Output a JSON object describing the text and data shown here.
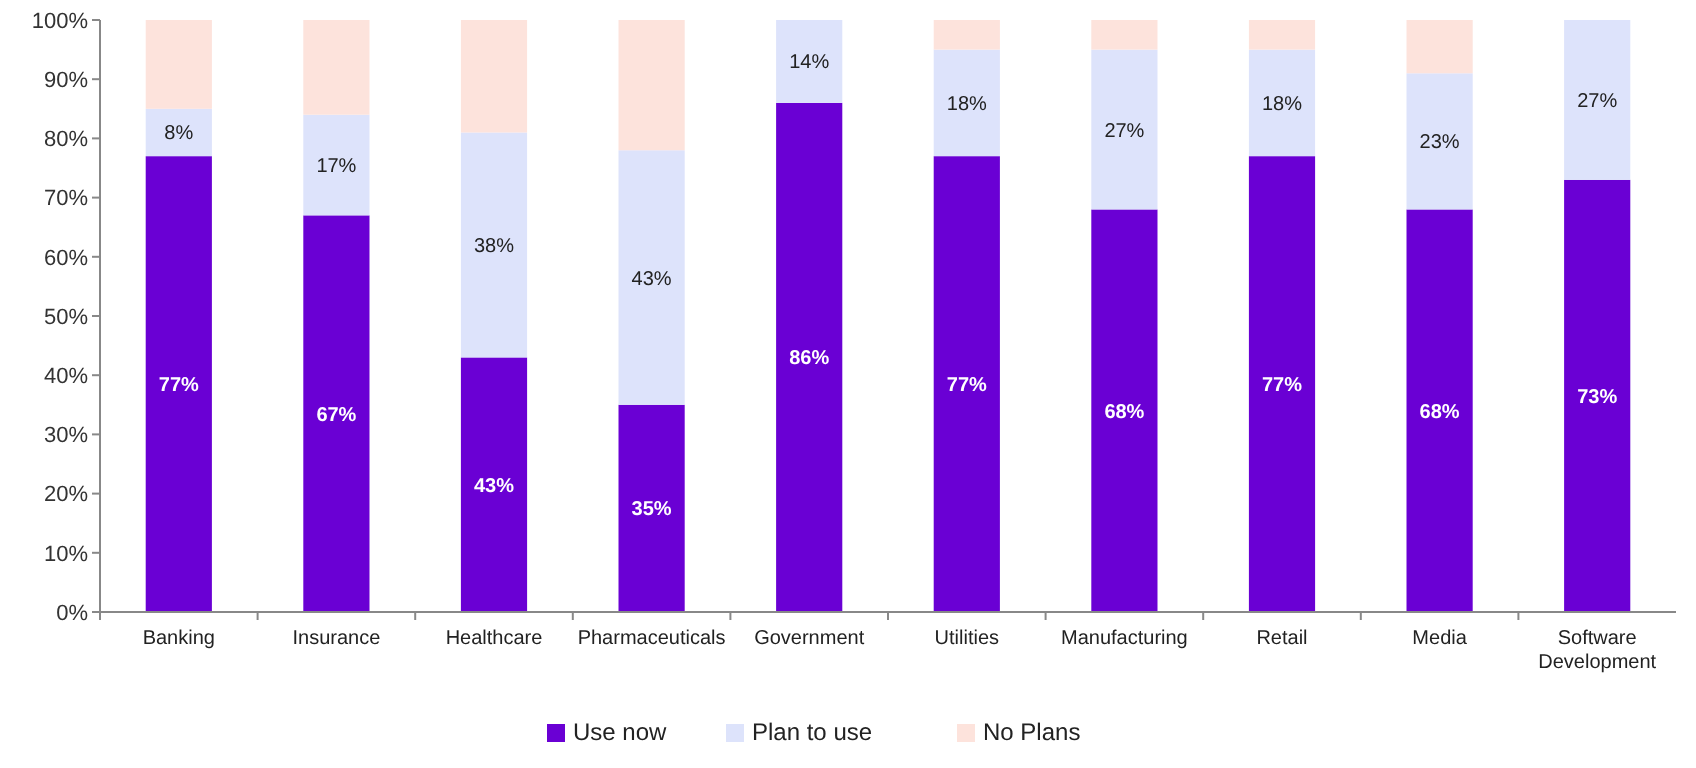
{
  "chart_data": {
    "type": "bar",
    "stacked": true,
    "categories": [
      "Banking",
      "Insurance",
      "Healthcare",
      "Pharmaceuticals",
      "Government",
      "Utilities",
      "Manufacturing",
      "Retail",
      "Media",
      "Software Development"
    ],
    "series": [
      {
        "name": "Use now",
        "color": "#6a00d4",
        "values": [
          77,
          67,
          43,
          35,
          86,
          77,
          68,
          77,
          68,
          73
        ],
        "value_labels": [
          "77%",
          "67%",
          "43%",
          "35%",
          "86%",
          "77%",
          "68%",
          "77%",
          "68%",
          "73%"
        ]
      },
      {
        "name": "Plan to use",
        "color": "#dde3fb",
        "values": [
          8,
          17,
          38,
          43,
          14,
          18,
          27,
          18,
          23,
          27
        ],
        "value_labels": [
          "8%",
          "17%",
          "38%",
          "43%",
          "14%",
          "18%",
          "27%",
          "18%",
          "23%",
          "27%"
        ]
      },
      {
        "name": "No Plans",
        "color": "#fde3dc",
        "values": [
          15,
          16,
          19,
          22,
          0,
          5,
          5,
          5,
          9,
          0
        ]
      }
    ],
    "ylim": [
      0,
      100
    ],
    "yticks": [
      {
        "value": 0,
        "label": "0%"
      },
      {
        "value": 10,
        "label": "10%"
      },
      {
        "value": 20,
        "label": "20%"
      },
      {
        "value": 30,
        "label": "30%"
      },
      {
        "value": 40,
        "label": "40%"
      },
      {
        "value": 50,
        "label": "50%"
      },
      {
        "value": 60,
        "label": "60%"
      },
      {
        "value": 70,
        "label": "70%"
      },
      {
        "value": 80,
        "label": "80%"
      },
      {
        "value": 90,
        "label": "90%"
      },
      {
        "value": 100,
        "label": "100%"
      }
    ],
    "legend": "bottom"
  }
}
